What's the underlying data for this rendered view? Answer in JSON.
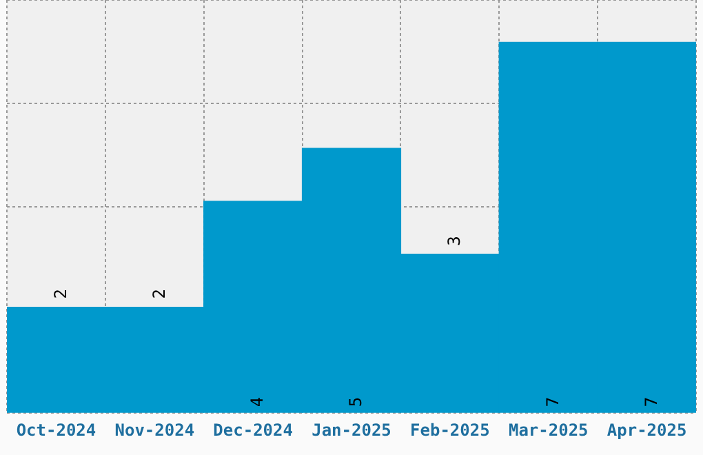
{
  "chart_data": {
    "type": "bar",
    "categories": [
      "Oct-2024",
      "Nov-2024",
      "Dec-2024",
      "Jan-2025",
      "Feb-2025",
      "Mar-2025",
      "Apr-2025"
    ],
    "values": [
      2,
      2,
      4,
      5,
      3,
      7,
      7
    ],
    "color": "#0099cc",
    "ylim": [
      0,
      7.8
    ],
    "grid": true,
    "tick_labels": "x",
    "data_labels": true
  }
}
